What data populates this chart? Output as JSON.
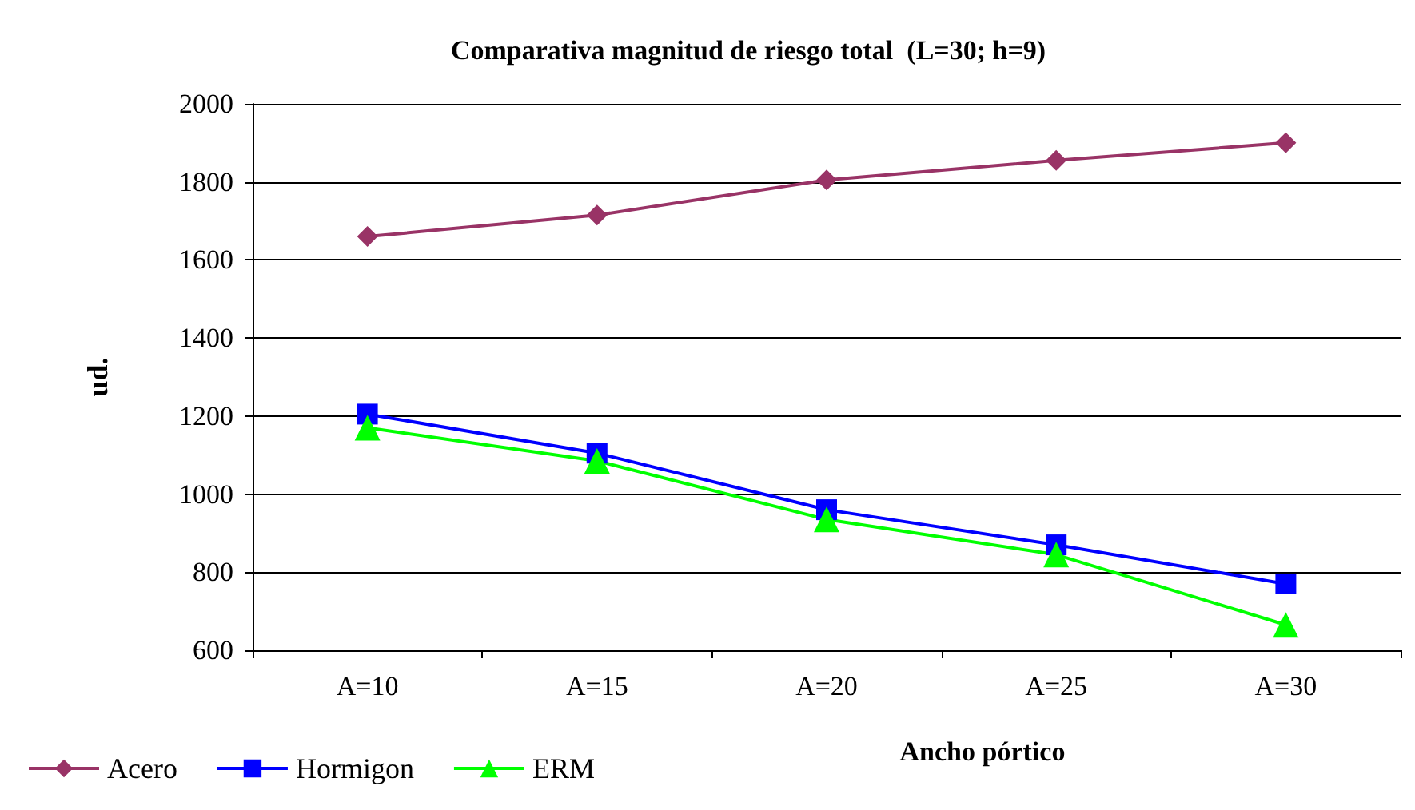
{
  "chart_data": {
    "type": "line",
    "title": "Comparativa magnitud de riesgo total  (L=30; h=9)",
    "xlabel": "Ancho pórtico",
    "ylabel": "ud.",
    "categories": [
      "A=10",
      "A=15",
      "A=20",
      "A=25",
      "A=30"
    ],
    "series": [
      {
        "name": "Acero",
        "color": "#993366",
        "marker": "diamond",
        "values": [
          1660,
          1715,
          1805,
          1855,
          1900
        ]
      },
      {
        "name": "Hormigon",
        "color": "#0000ff",
        "marker": "square",
        "values": [
          1205,
          1105,
          960,
          870,
          770
        ]
      },
      {
        "name": "ERM",
        "color": "#00ff00",
        "marker": "triangle",
        "values": [
          1170,
          1085,
          935,
          845,
          665
        ]
      }
    ],
    "ylim": [
      600,
      2000
    ],
    "yticks": [
      600,
      800,
      1000,
      1200,
      1400,
      1600,
      1800,
      2000
    ],
    "grid": "y",
    "legend": "bottom left"
  }
}
